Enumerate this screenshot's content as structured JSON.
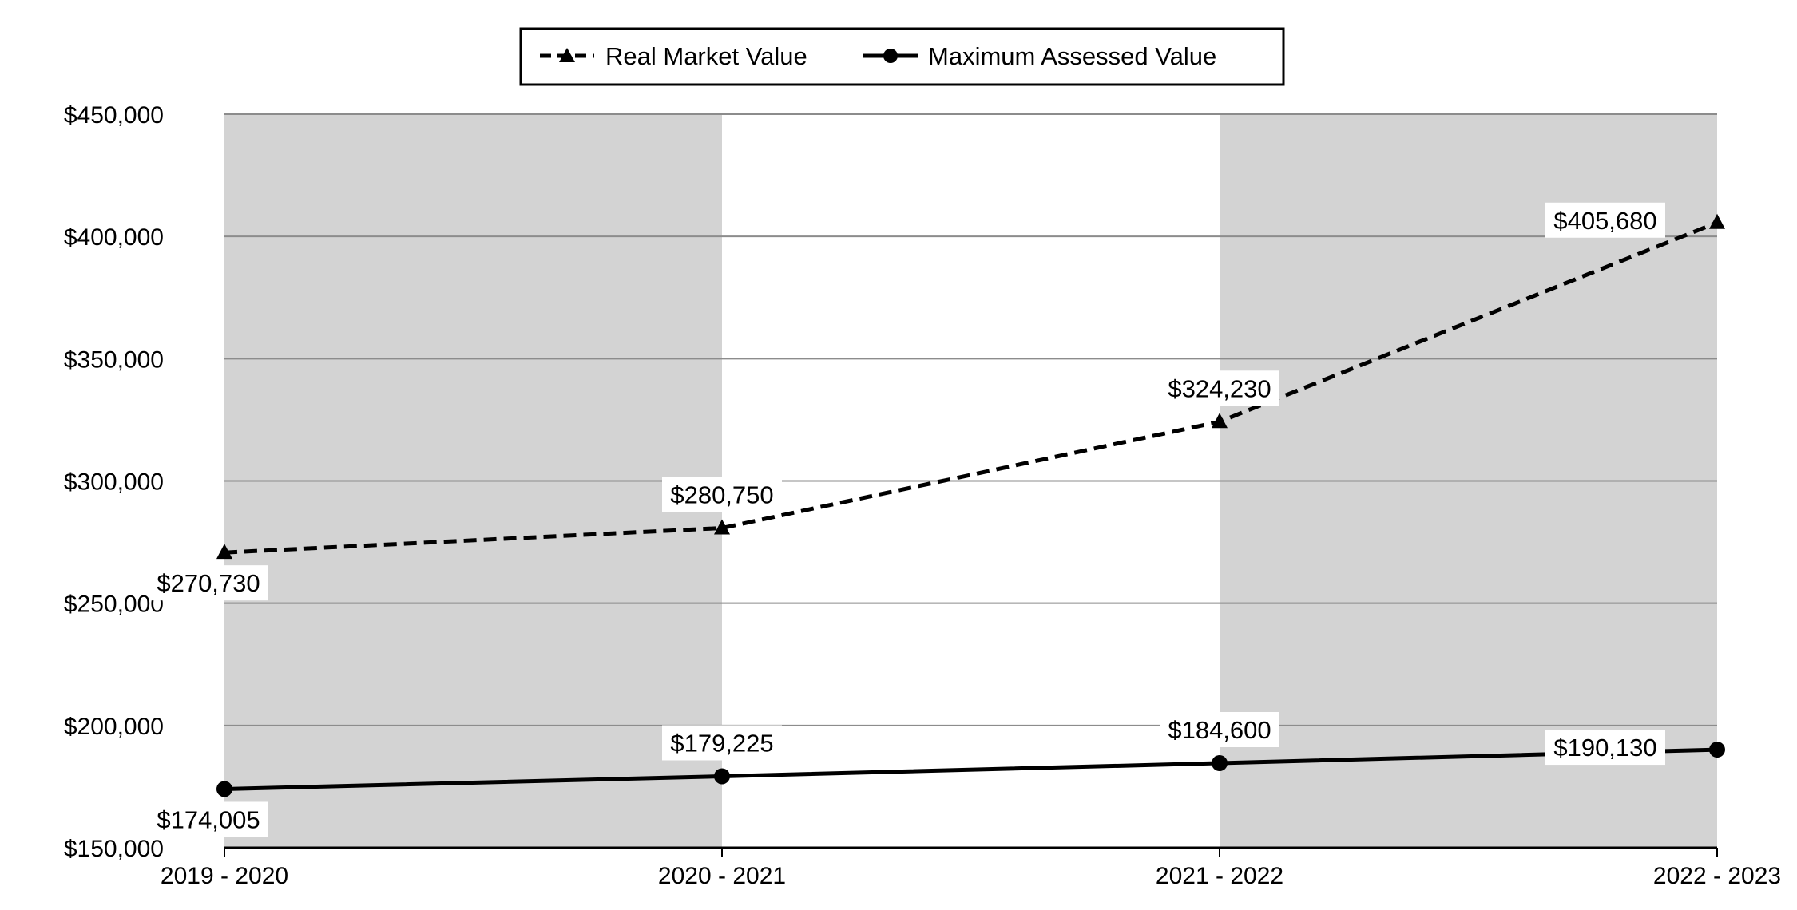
{
  "chart_data": {
    "type": "line",
    "categories": [
      "2019 - 2020",
      "2020 - 2021",
      "2021 - 2022",
      "2022 - 2023"
    ],
    "series": [
      {
        "name": "Real Market Value",
        "values": [
          270730,
          280750,
          324230,
          405680
        ],
        "labels": [
          "$270,730",
          "$280,750",
          "$324,230",
          "$405,680"
        ],
        "line_style": "dashed",
        "marker": "triangle",
        "color": "#000000"
      },
      {
        "name": "Maximum Assessed Value",
        "values": [
          174005,
          179225,
          184600,
          190130
        ],
        "labels": [
          "$174,005",
          "$179,225",
          "$184,600",
          "$190,130"
        ],
        "line_style": "solid",
        "marker": "circle",
        "color": "#000000"
      }
    ],
    "ylim": [
      150000,
      450000
    ],
    "y_ticks": [
      150000,
      200000,
      250000,
      300000,
      350000,
      400000,
      450000
    ],
    "y_tick_labels": [
      "$150,000",
      "$200,000",
      "$250,000",
      "$300,000",
      "$350,000",
      "$400,000",
      "$450,000"
    ],
    "grid": true,
    "band_color": "#d3d3d3",
    "legend_position": "top-center",
    "title": "",
    "xlabel": "",
    "ylabel": ""
  }
}
